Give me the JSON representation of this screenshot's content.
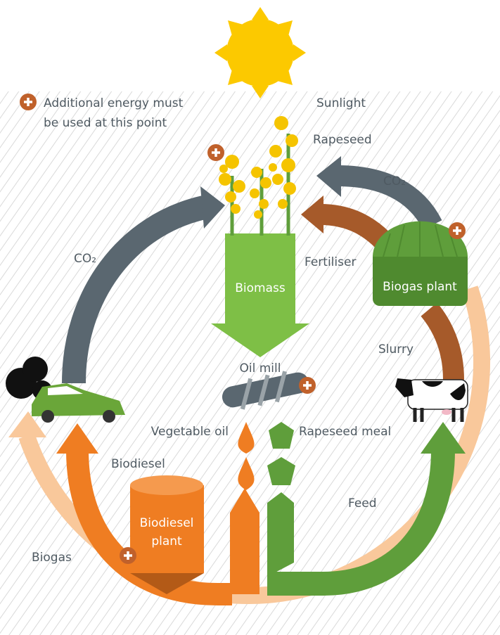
{
  "legend": {
    "line1": "Additional energy must",
    "line2": "be used at this point"
  },
  "labels": {
    "sunlight": "Sunlight",
    "rapeseed": "Rapeseed",
    "co2_right": "CO₂",
    "co2_left": "CO₂",
    "fertiliser": "Fertiliser",
    "biogas_plant": "Biogas plant",
    "biomass": "Biomass",
    "oil_mill": "Oil mill",
    "slurry": "Slurry",
    "vegetable_oil": "Vegetable oil",
    "rapeseed_meal": "Rapeseed meal",
    "biodiesel": "Biodiesel",
    "feed": "Feed",
    "biodiesel_plant_line1": "Biodiesel",
    "biodiesel_plant_line2": "plant",
    "biogas": "Biogas"
  }
}
